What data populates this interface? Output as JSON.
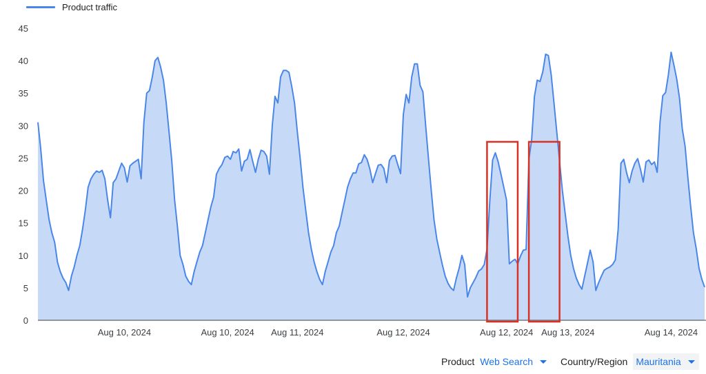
{
  "legend": {
    "label": "Product traffic",
    "color": "#4a86e8"
  },
  "filters": {
    "product_label": "Product",
    "product_value": "Web Search",
    "region_label": "Country/Region",
    "region_value": "Mauritania"
  },
  "chart_data": {
    "type": "area",
    "series": [
      {
        "name": "Product traffic",
        "color": "#4a86e8",
        "fill": "#c6daf8",
        "values": [
          30.5,
          26.5,
          21.5,
          18.5,
          15.5,
          13.5,
          12,
          9,
          7.5,
          6.5,
          5.8,
          4.6,
          6.8,
          8.2,
          10,
          11.5,
          14,
          17,
          20.5,
          21.8,
          22.5,
          23,
          22.8,
          23.1,
          21.8,
          18.5,
          15.8,
          21.2,
          21.8,
          23,
          24.2,
          23.5,
          21.3,
          23.8,
          24.2,
          24.5,
          24.8,
          21.8,
          30.5,
          35,
          35.4,
          37.5,
          40,
          40.5,
          39,
          37,
          33.5,
          29,
          24.5,
          18.5,
          14.5,
          10,
          8.6,
          6.8,
          6,
          5.5,
          7.5,
          9,
          10.5,
          11.5,
          13.5,
          15.5,
          17.5,
          19,
          22.5,
          23.4,
          24,
          25.1,
          25.3,
          24.8,
          26,
          25.8,
          26.4,
          23,
          24.5,
          24.8,
          26.3,
          24.5,
          22.8,
          24.8,
          26.2,
          26,
          25.3,
          22.5,
          30,
          34.5,
          33.5,
          37.5,
          38.5,
          38.5,
          38.2,
          36,
          33.5,
          29,
          25,
          20.5,
          17,
          13.5,
          11,
          9,
          7.5,
          6.3,
          5.5,
          7.5,
          9,
          10.5,
          11.5,
          13.5,
          14.5,
          16.5,
          18.5,
          20.5,
          21.8,
          22.7,
          22.7,
          24.1,
          24.3,
          25.5,
          24.8,
          23.3,
          21.2,
          22.6,
          23.9,
          24,
          23.4,
          21.2,
          24.6,
          25.3,
          25.4,
          24,
          22.6,
          31.7,
          34.8,
          33.5,
          37.5,
          39.5,
          39.5,
          36.2,
          35.2,
          30,
          25,
          20,
          15.5,
          12.5,
          10.5,
          8.5,
          6.8,
          5.7,
          5,
          4.6,
          6.5,
          8,
          10,
          8.6,
          3.6,
          5,
          5.8,
          6.6,
          7.6,
          7.9,
          8.6,
          11,
          18.5,
          24.7,
          25.8,
          24.4,
          22.5,
          20.5,
          18.5,
          8.7,
          9.1,
          9.4,
          8.7,
          9.9,
          10.8,
          10.9,
          24.8,
          27.8,
          34.5,
          37,
          36.8,
          38.3,
          41,
          40.8,
          37.8,
          33.5,
          29,
          24.5,
          20,
          16.5,
          13,
          10,
          8,
          6.5,
          5.5,
          4.8,
          6.8,
          8.8,
          10.8,
          9,
          4.6,
          5.8,
          6.8,
          7.7,
          8,
          8.2,
          8.6,
          9.3,
          14,
          24.2,
          24.8,
          22.8,
          21.2,
          23,
          24.2,
          24.9,
          23.3,
          21.3,
          24.4,
          24.7,
          24,
          24.4,
          22.8,
          30.5,
          34.6,
          35.1,
          37.8,
          41.3,
          39.3,
          37.2,
          34.2,
          29.5,
          26.8,
          22,
          17.5,
          13.5,
          11,
          8,
          6.3,
          5.1
        ]
      }
    ],
    "x_tick_labels": [
      "Aug 10, 2024",
      "Aug 10, 2024",
      "Aug 11, 2024",
      "Aug 12, 2024",
      "Aug 12, 2024",
      "Aug 13, 2024",
      "Aug 14, 2024"
    ],
    "x_tick_index": [
      31,
      68,
      93,
      131,
      168,
      190,
      227
    ],
    "y_ticks": [
      0,
      5,
      10,
      15,
      20,
      25,
      30,
      35,
      40,
      45
    ],
    "ylim": [
      0,
      45
    ],
    "grid": false,
    "legend_position": "top-left",
    "annotations": [
      {
        "type": "highlight-box",
        "color": "#d93025",
        "x_index_range": [
          161,
          172
        ],
        "y_range": [
          0,
          27.5
        ]
      },
      {
        "type": "highlight-box",
        "color": "#d93025",
        "x_index_range": [
          176,
          187
        ],
        "y_range": [
          0,
          27.5
        ]
      }
    ]
  }
}
